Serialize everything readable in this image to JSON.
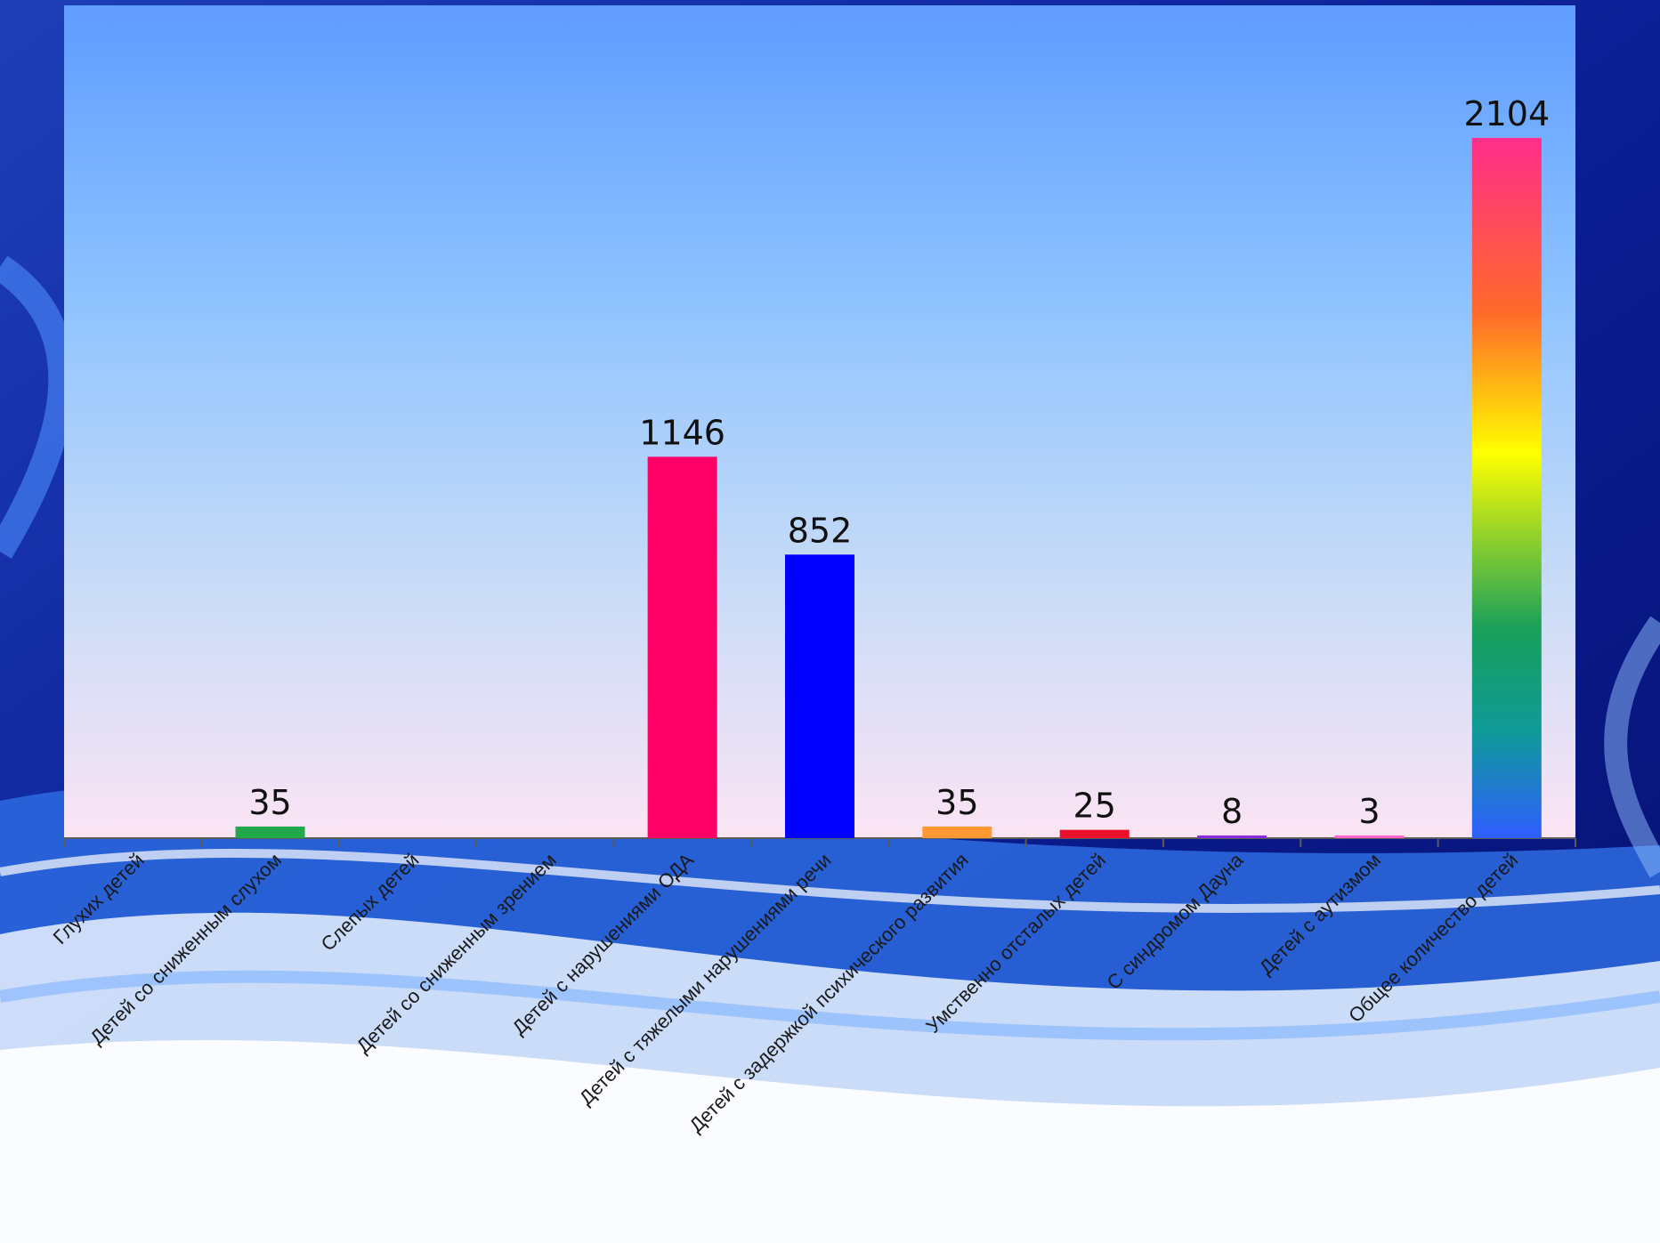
{
  "chart_data": {
    "type": "bar",
    "categories": [
      "Глухих детей",
      "Детей со сниженным слухом",
      "Слепых детей",
      "Детей со сниженным зрением",
      "Детей с нарушениями ОДА",
      "Детей с тяжелыми нарушениями речи",
      "Детей с задержкой психического развития",
      "Умственно отсталых детей",
      "С синдромом Дауна",
      "Детей с аутизмом",
      "Общее количество детей"
    ],
    "values": [
      0,
      35,
      0,
      0,
      1146,
      852,
      35,
      25,
      8,
      3,
      2104
    ],
    "data_labels": [
      "",
      "35",
      "",
      "",
      "1146",
      "852",
      "35",
      "25",
      "8",
      "3",
      "2104"
    ],
    "colors": [
      "#7a5cc6",
      "#22a84a",
      "#6fb0ff",
      "#6fb0ff",
      "#ff0066",
      "#0000ff",
      "#ff9933",
      "#e8102a",
      "#8a2be2",
      "#ff66cc",
      "rainbow"
    ],
    "ylim": [
      0,
      2300
    ],
    "grid": false,
    "legend": "none"
  }
}
